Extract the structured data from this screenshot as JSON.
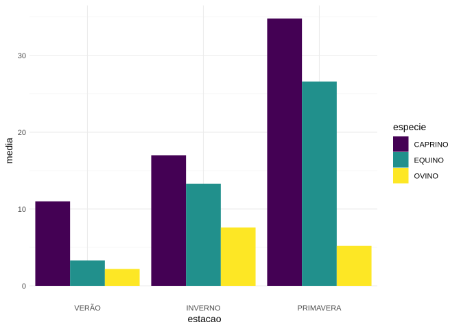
{
  "chart_data": {
    "type": "bar",
    "categories": [
      "VERÃO",
      "INVERNO",
      "PRIMAVERA"
    ],
    "series": [
      {
        "name": "CAPRINO",
        "values": [
          11.0,
          17.0,
          34.8
        ],
        "color": "#440154"
      },
      {
        "name": "EQUINO",
        "values": [
          3.3,
          13.3,
          26.6
        ],
        "color": "#21908C"
      },
      {
        "name": "OVINO",
        "values": [
          2.2,
          7.6,
          5.2
        ],
        "color": "#FDE725"
      }
    ],
    "title": "",
    "xlabel": "estacao",
    "ylabel": "media",
    "ylim": [
      0,
      36.5
    ],
    "yticks": [
      0,
      10,
      20,
      30
    ],
    "legend_title": "especie",
    "legend_position": "right",
    "grid": true
  }
}
